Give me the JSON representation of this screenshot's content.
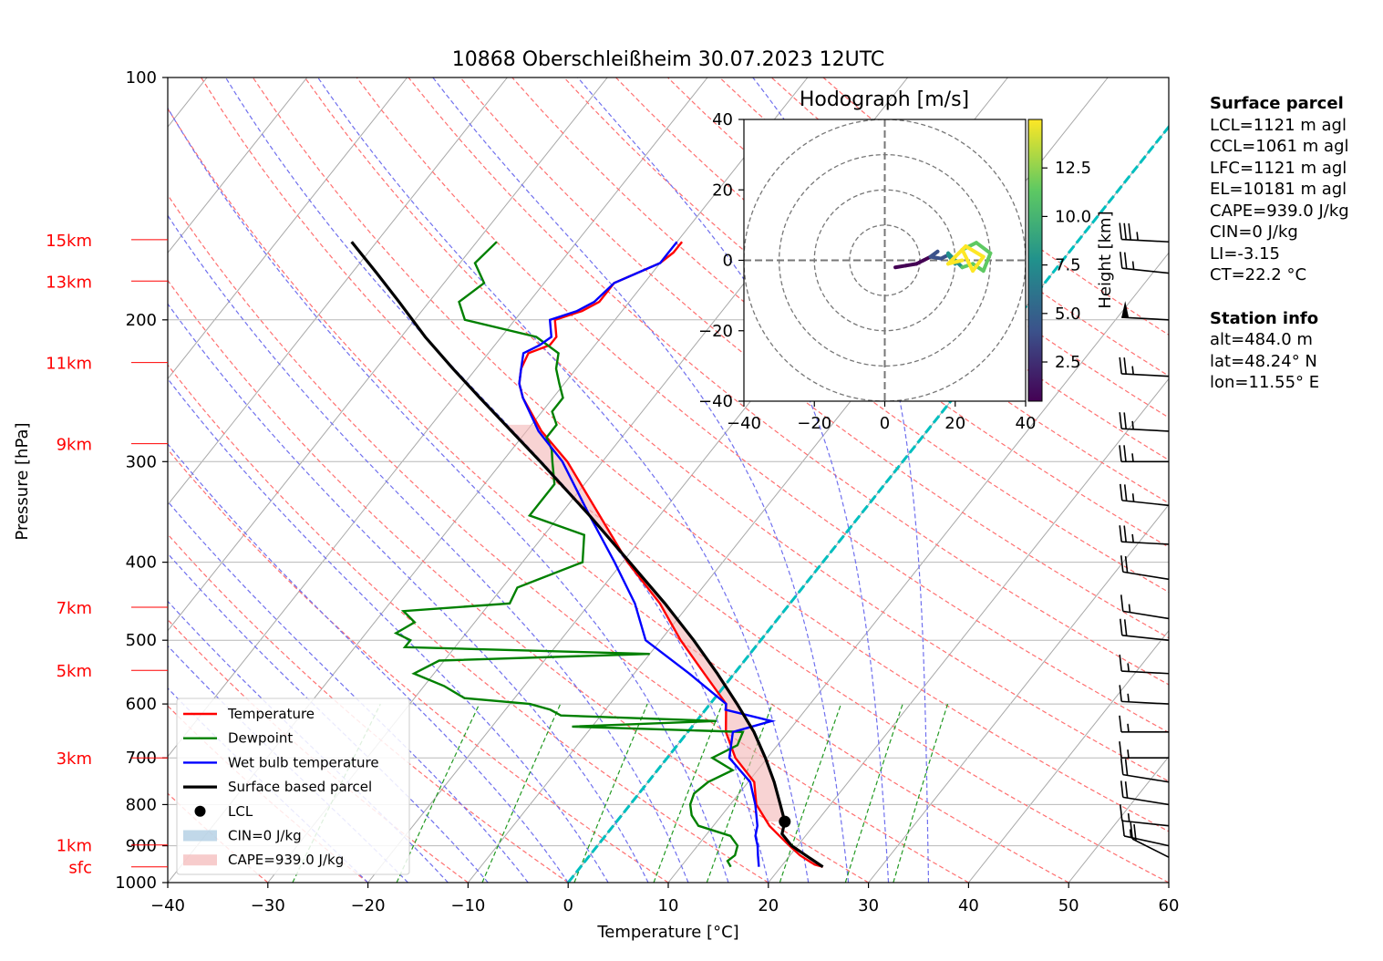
{
  "chart_data": {
    "type": "line",
    "title": "10868 Oberschleißheim 30.07.2023 12UTC",
    "xlabel": "Temperature [°C]",
    "ylabel": "Pressure [hPa]",
    "x_ticks": [
      "−40",
      "−30",
      "−20",
      "−10",
      "0",
      "10",
      "20",
      "30",
      "40",
      "50",
      "60"
    ],
    "y_ticks": [
      "100",
      "200",
      "300",
      "400",
      "500",
      "600",
      "700",
      "800",
      "900",
      "1000"
    ],
    "xlim": [
      -40,
      60
    ],
    "ylim": [
      1000,
      100
    ],
    "y_scale": "log",
    "skew": true,
    "grid": true,
    "height_labels": [
      "15km",
      "13km",
      "11km",
      "9km",
      "7km",
      "5km",
      "3km",
      "1km",
      "sfc"
    ],
    "height_label_pressures": [
      159,
      179,
      226,
      285,
      455,
      545,
      700,
      898,
      956
    ],
    "series": [
      {
        "name": "Temperature",
        "color": "#ff0000",
        "p": [
          956,
          950,
          925,
          900,
          875,
          850,
          800,
          750,
          700,
          650,
          600,
          550,
          500,
          450,
          400,
          350,
          300,
          275,
          250,
          240,
          230,
          220,
          215,
          210,
          200,
          195,
          190,
          180,
          170,
          165,
          160
        ],
        "t": [
          24.2,
          23.2,
          21.0,
          19.2,
          17.4,
          15.6,
          12.6,
          10.6,
          6.8,
          3.8,
          1.6,
          -3.0,
          -8.0,
          -13.0,
          -19.5,
          -26.0,
          -33.5,
          -38.5,
          -43.0,
          -44.5,
          -45.5,
          -46.0,
          -44.5,
          -44.5,
          -46.0,
          -44.0,
          -43.0,
          -43.0,
          -40.0,
          -39.5,
          -39.5
        ]
      },
      {
        "name": "Dewpoint",
        "color": "#008000",
        "p": [
          956,
          940,
          925,
          900,
          875,
          850,
          825,
          800,
          775,
          750,
          725,
          700,
          675,
          650,
          640,
          630,
          620,
          610,
          600,
          590,
          570,
          550,
          530,
          520,
          510,
          500,
          490,
          475,
          460,
          450,
          430,
          400,
          370,
          350,
          320,
          300,
          290,
          280,
          270,
          260,
          250,
          240,
          230,
          220,
          210,
          200,
          190,
          180,
          170,
          160
        ],
        "t": [
          15.0,
          14.2,
          14.5,
          14.0,
          12.5,
          8.5,
          7.0,
          6.0,
          5.5,
          6.0,
          7.5,
          4.5,
          6.0,
          5.5,
          -12.0,
          2.0,
          -14.0,
          -15.5,
          -18.0,
          -25.0,
          -28.0,
          -32.0,
          -30.5,
          -10.0,
          -35.0,
          -35.0,
          -37.0,
          -36.0,
          -38.0,
          -28.0,
          -28.5,
          -24.0,
          -26.0,
          -33.0,
          -33.0,
          -35.0,
          -36.0,
          -37.5,
          -37.5,
          -39.0,
          -39.0,
          -40.5,
          -42.0,
          -43.0,
          -46.5,
          -55.0,
          -57.0,
          -56.0,
          -58.5,
          -58.0
        ]
      },
      {
        "name": "Wet bulb temperature",
        "color": "#0000ff",
        "p": [
          956,
          925,
          900,
          875,
          850,
          800,
          750,
          700,
          650,
          630,
          610,
          600,
          550,
          500,
          450,
          400,
          350,
          300,
          275,
          250,
          240,
          230,
          220,
          215,
          210,
          200,
          195,
          190,
          180,
          170,
          165,
          160
        ],
        "t": [
          17.8,
          16.8,
          16.0,
          15.0,
          14.4,
          12.5,
          10.2,
          6.2,
          4.5,
          7.5,
          2.0,
          1.6,
          -4.5,
          -11.5,
          -15.5,
          -20.8,
          -27.0,
          -34.0,
          -38.8,
          -43.0,
          -44.5,
          -45.5,
          -46.5,
          -45.5,
          -45.0,
          -46.5,
          -44.5,
          -43.5,
          -43.0,
          -40.0,
          -40.0,
          -40.0
        ]
      },
      {
        "name": "Surface based parcel",
        "color": "#000000",
        "p": [
          956,
          930,
          900,
          870,
          840,
          800,
          750,
          700,
          650,
          600,
          550,
          500,
          450,
          400,
          350,
          300,
          275,
          250,
          230,
          210,
          190,
          175,
          160
        ],
        "t": [
          24.2,
          22.0,
          19.4,
          17.5,
          16.8,
          15.0,
          12.6,
          9.8,
          6.6,
          2.7,
          -1.7,
          -6.7,
          -12.5,
          -19.3,
          -27.0,
          -36.2,
          -41.5,
          -47.3,
          -52.3,
          -57.6,
          -63.0,
          -67.5,
          -72.5
        ]
      }
    ],
    "lcl": {
      "p": 840,
      "t": 16.8
    },
    "legend": {
      "placement": "lower-left",
      "entries": [
        "Temperature",
        "Dewpoint",
        "Wet bulb temperature",
        "Surface based parcel",
        "LCL",
        "CIN=0 J/kg",
        "CAPE=939.0 J/kg"
      ]
    },
    "shading": {
      "cape_color": "#f4b6b6",
      "cin_color": "#a6c8e0"
    },
    "wind_barbs": {
      "p": [
        160,
        175,
        200,
        235,
        275,
        300,
        340,
        380,
        420,
        470,
        500,
        550,
        600,
        650,
        700,
        750,
        800,
        850,
        900,
        930
      ],
      "speed_kt": [
        35,
        25,
        50,
        25,
        25,
        25,
        25,
        25,
        20,
        15,
        20,
        15,
        15,
        15,
        15,
        20,
        20,
        15,
        15,
        20
      ],
      "dir_deg": [
        265,
        260,
        265,
        265,
        265,
        270,
        260,
        265,
        255,
        255,
        260,
        265,
        265,
        270,
        270,
        255,
        255,
        260,
        250,
        230
      ]
    },
    "hodograph": {
      "title": "Hodograph [m/s]",
      "xlim": [
        -40,
        40
      ],
      "ylim": [
        -40,
        40
      ],
      "x_ticks": [
        "−40",
        "−20",
        "0",
        "20",
        "40"
      ],
      "y_ticks": [
        "−40",
        "−20",
        "0",
        "20",
        "40"
      ],
      "rings": [
        10,
        20,
        30,
        40
      ],
      "colorbar_label": "Height [km]",
      "colorbar_ticks": [
        "2.5",
        "5.0",
        "7.5",
        "10.0",
        "12.5"
      ],
      "colorbar_range": [
        0.48,
        15
      ],
      "points": [
        {
          "u": 3,
          "v": -2,
          "h": 0.5
        },
        {
          "u": 6,
          "v": -1.5,
          "h": 1
        },
        {
          "u": 9,
          "v": -1,
          "h": 1.8
        },
        {
          "u": 11,
          "v": 0,
          "h": 2.6
        },
        {
          "u": 13,
          "v": 1,
          "h": 3.4
        },
        {
          "u": 15,
          "v": 2.5,
          "h": 4.3
        },
        {
          "u": 13,
          "v": 1,
          "h": 5
        },
        {
          "u": 16,
          "v": 0.5,
          "h": 6
        },
        {
          "u": 18,
          "v": 1.5,
          "h": 7
        },
        {
          "u": 20,
          "v": -1,
          "h": 8
        },
        {
          "u": 18,
          "v": 2,
          "h": 9
        },
        {
          "u": 22,
          "v": -2,
          "h": 10
        },
        {
          "u": 25,
          "v": -1,
          "h": 10.8
        },
        {
          "u": 28,
          "v": -3,
          "h": 11.2
        },
        {
          "u": 30,
          "v": 2,
          "h": 11.6
        },
        {
          "u": 26,
          "v": 5,
          "h": 12
        },
        {
          "u": 22,
          "v": 3,
          "h": 12.4
        },
        {
          "u": 25,
          "v": -3,
          "h": 12.8
        },
        {
          "u": 28,
          "v": 1,
          "h": 13.2
        },
        {
          "u": 23,
          "v": 4,
          "h": 13.6
        },
        {
          "u": 20,
          "v": 1,
          "h": 14
        },
        {
          "u": 18,
          "v": -1,
          "h": 14.4
        },
        {
          "u": 22,
          "v": 0,
          "h": 14.8
        }
      ]
    }
  },
  "info": {
    "surface_header": "Surface parcel",
    "surface_lines": [
      "LCL=1121 m agl",
      "CCL=1061 m agl",
      "LFC=1121 m agl",
      "EL=10181 m agl",
      "CAPE=939.0 J/kg",
      "CIN=0 J/kg",
      "LI=-3.15",
      "CT=22.2 °C"
    ],
    "station_header": "Station info",
    "station_lines": [
      "alt=484.0 m",
      "lat=48.24° N",
      "lon=11.55° E"
    ]
  }
}
